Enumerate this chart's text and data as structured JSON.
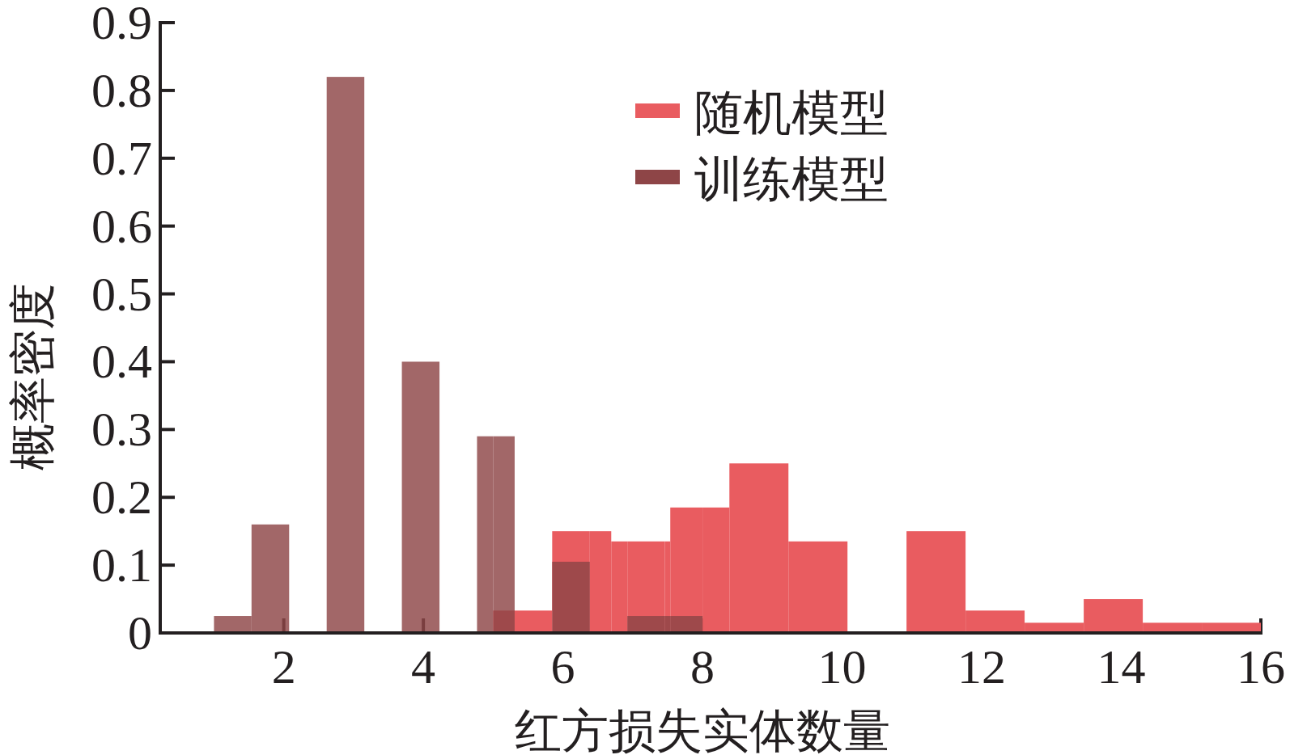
{
  "chart_data": {
    "type": "histogram",
    "xlabel": "红方损失实体数量",
    "ylabel": "概率密度",
    "xlim": [
      0.23,
      16
    ],
    "xticks": [
      2,
      4,
      6,
      8,
      10,
      12,
      14,
      16
    ],
    "ylim": [
      0,
      0.9
    ],
    "yticks": [
      0,
      0.1,
      0.2,
      0.3,
      0.4,
      0.5,
      0.6,
      0.7,
      0.8,
      0.9
    ],
    "legend": "top right",
    "bins": [
      1,
      1.538,
      2.077,
      2.615,
      3.154,
      3.692,
      4.231,
      4.769,
      5,
      5.308,
      5.846,
      6.385,
      6.692,
      6.923,
      7.462,
      7.538,
      8,
      8.385,
      9.231,
      10.077,
      10.923,
      11.769,
      12.615,
      13.462,
      14.308,
      15.154,
      16
    ],
    "series": [
      {
        "name": "随机模型",
        "color": "#e95c60",
        "values": [
          0,
          0,
          0,
          0,
          0,
          0,
          0,
          0,
          0.033,
          0.033,
          0.15,
          0.15,
          0.135,
          0.135,
          0.135,
          0.185,
          0.185,
          0.25,
          0.135,
          0,
          0.15,
          0.033,
          0.015,
          0.05,
          0.015,
          0.015
        ]
      },
      {
        "name": "训练模型",
        "color": "#8e4547",
        "values": [
          0.025,
          0.16,
          0,
          0.82,
          0,
          0.4,
          0,
          0.29,
          0.29,
          0,
          0.105,
          0,
          0,
          0.025,
          0.025,
          0.025,
          0,
          0,
          0,
          0,
          0,
          0,
          0,
          0,
          0,
          0
        ]
      }
    ]
  }
}
